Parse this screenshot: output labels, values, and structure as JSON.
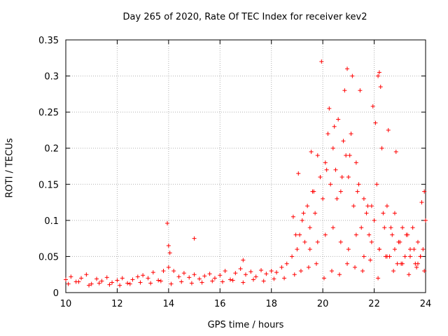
{
  "chart_data": {
    "type": "scatter",
    "title": "Day 265 of 2020, Rate Of TEC Index for receiver kev2",
    "xlabel": "GPS time / hours",
    "ylabel": "ROTI / TECUs",
    "xlim": [
      10,
      24
    ],
    "ylim": [
      0,
      0.35
    ],
    "xticks": [
      "10",
      "12",
      "14",
      "16",
      "18",
      "20",
      "22",
      "24"
    ],
    "yticks": [
      "0",
      "0.05",
      "0.1",
      "0.15",
      "0.2",
      "0.25",
      "0.3",
      "0.35"
    ],
    "grid": true,
    "marker": "+",
    "color": "#ff0000",
    "series": [
      {
        "name": "ROTI",
        "x": [
          10.0,
          10.2,
          10.4,
          10.6,
          10.8,
          11.0,
          11.2,
          11.4,
          11.6,
          11.8,
          12.0,
          12.2,
          12.4,
          12.6,
          12.8,
          13.0,
          13.2,
          13.4,
          13.6,
          13.8,
          14.0,
          14.2,
          14.4,
          14.6,
          14.8,
          15.0,
          15.2,
          15.4,
          15.6,
          15.8,
          16.0,
          16.2,
          16.4,
          16.6,
          16.8,
          17.0,
          17.2,
          17.4,
          17.6,
          17.8,
          18.0,
          18.2,
          18.4,
          18.6,
          18.8,
          19.0,
          19.1,
          19.2,
          19.3,
          19.4,
          19.5,
          19.6,
          19.7,
          19.8,
          19.9,
          20.0,
          20.1,
          20.2,
          20.3,
          20.4,
          20.5,
          20.6,
          20.7,
          20.8,
          20.9,
          21.0,
          21.1,
          21.2,
          21.3,
          21.4,
          21.5,
          21.6,
          21.7,
          21.8,
          21.9,
          22.0,
          22.1,
          22.2,
          22.3,
          22.4,
          22.5,
          22.6,
          22.7,
          22.8,
          22.9,
          23.0,
          23.1,
          23.2,
          23.3,
          23.4,
          23.5,
          23.6,
          23.7,
          23.8,
          23.9,
          24.0,
          10.1,
          10.5,
          10.9,
          11.3,
          11.7,
          12.1,
          12.5,
          12.9,
          13.3,
          13.7,
          14.1,
          14.5,
          14.9,
          15.3,
          15.7,
          16.1,
          16.5,
          16.9,
          17.3,
          17.7,
          18.1,
          18.5,
          18.9,
          19.15,
          19.45,
          19.75,
          20.05,
          20.35,
          20.65,
          20.95,
          21.25,
          21.55,
          21.85,
          22.15,
          22.45,
          22.75,
          23.05,
          23.35,
          23.65,
          23.95,
          13.95,
          14.0,
          14.05,
          15.0,
          16.9,
          18.85,
          19.05,
          19.55,
          19.95,
          20.25,
          20.45,
          20.85,
          20.95,
          21.15,
          21.45,
          21.95,
          22.05,
          22.15,
          22.2,
          22.25,
          22.55,
          22.85,
          23.85,
          23.95,
          19.5,
          19.8,
          20.1,
          20.4,
          20.7,
          21.0,
          21.3,
          21.6,
          21.9,
          22.2,
          22.5,
          22.8,
          23.1,
          23.4,
          23.7,
          18.95,
          19.25,
          19.65,
          20.15,
          20.55,
          20.75,
          21.05,
          21.35,
          21.75,
          22.35,
          22.65,
          22.95,
          23.25,
          23.55,
          23.8
        ],
        "y": [
          0.018,
          0.022,
          0.015,
          0.02,
          0.025,
          0.012,
          0.019,
          0.016,
          0.021,
          0.014,
          0.017,
          0.02,
          0.013,
          0.018,
          0.022,
          0.024,
          0.02,
          0.028,
          0.017,
          0.03,
          0.035,
          0.03,
          0.022,
          0.027,
          0.021,
          0.025,
          0.019,
          0.023,
          0.026,
          0.02,
          0.024,
          0.03,
          0.018,
          0.027,
          0.033,
          0.025,
          0.029,
          0.022,
          0.031,
          0.026,
          0.03,
          0.028,
          0.035,
          0.04,
          0.05,
          0.06,
          0.08,
          0.1,
          0.07,
          0.12,
          0.09,
          0.14,
          0.11,
          0.19,
          0.16,
          0.13,
          0.18,
          0.22,
          0.15,
          0.2,
          0.17,
          0.24,
          0.14,
          0.21,
          0.19,
          0.16,
          0.22,
          0.12,
          0.18,
          0.15,
          0.09,
          0.13,
          0.11,
          0.08,
          0.12,
          0.1,
          0.15,
          0.06,
          0.2,
          0.09,
          0.12,
          0.05,
          0.08,
          0.11,
          0.04,
          0.07,
          0.09,
          0.05,
          0.08,
          0.06,
          0.09,
          0.04,
          0.07,
          0.05,
          0.06,
          0.1,
          0.012,
          0.015,
          0.01,
          0.013,
          0.011,
          0.01,
          0.012,
          0.014,
          0.013,
          0.016,
          0.012,
          0.015,
          0.013,
          0.014,
          0.016,
          0.015,
          0.017,
          0.014,
          0.018,
          0.016,
          0.019,
          0.02,
          0.025,
          0.03,
          0.035,
          0.04,
          0.02,
          0.03,
          0.025,
          0.04,
          0.035,
          0.03,
          0.045,
          0.02,
          0.05,
          0.03,
          0.04,
          0.025,
          0.035,
          0.03,
          0.096,
          0.065,
          0.055,
          0.075,
          0.045,
          0.105,
          0.165,
          0.195,
          0.32,
          0.255,
          0.23,
          0.28,
          0.31,
          0.3,
          0.28,
          0.258,
          0.235,
          0.3,
          0.305,
          0.285,
          0.225,
          0.195,
          0.125,
          0.14,
          0.06,
          0.07,
          0.08,
          0.09,
          0.07,
          0.06,
          0.08,
          0.05,
          0.07,
          0.06,
          0.05,
          0.06,
          0.04,
          0.05,
          0.04,
          0.08,
          0.11,
          0.14,
          0.17,
          0.13,
          0.16,
          0.19,
          0.14,
          0.12,
          0.11,
          0.09,
          0.07,
          0.08,
          0.06,
          0.05
        ]
      }
    ]
  }
}
